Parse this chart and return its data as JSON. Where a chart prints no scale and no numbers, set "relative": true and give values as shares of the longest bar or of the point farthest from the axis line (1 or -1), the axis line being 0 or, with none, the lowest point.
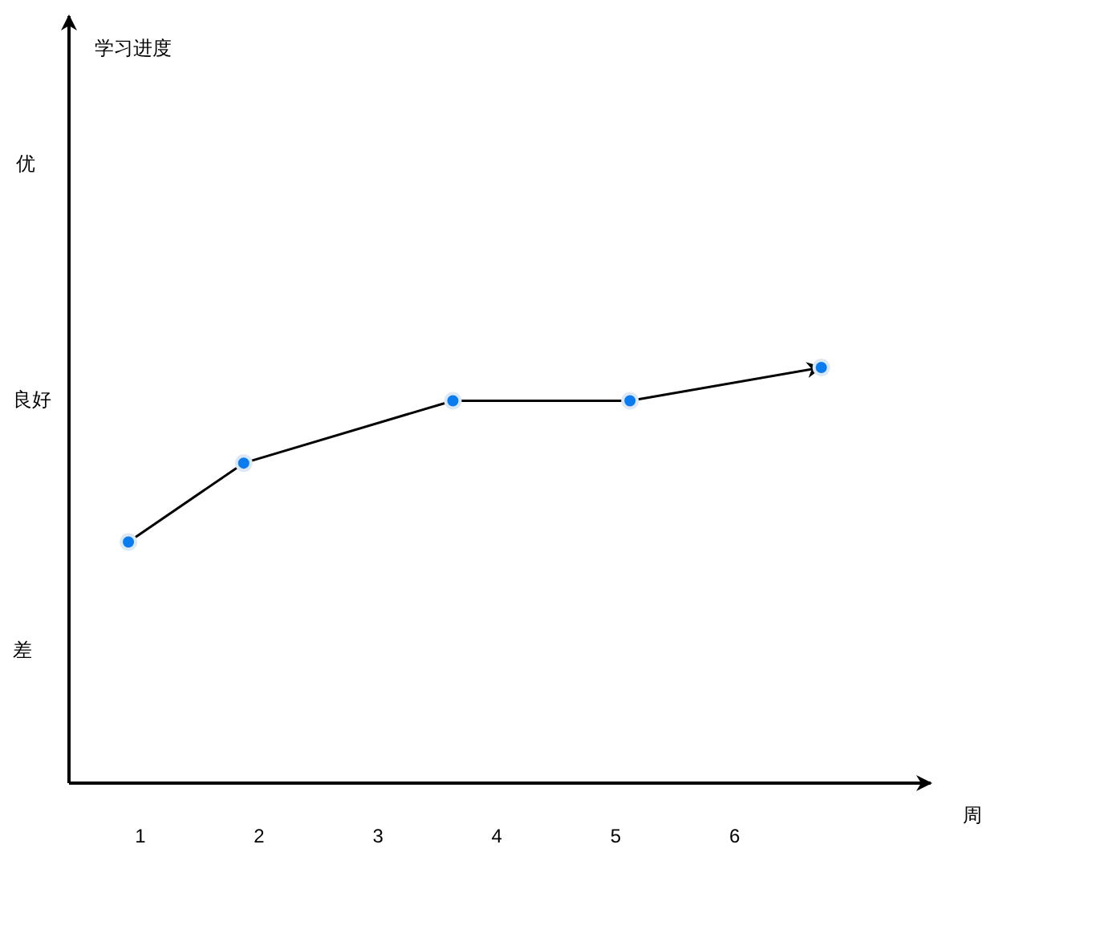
{
  "chart_data": {
    "type": "line",
    "xlabel": "周",
    "relative": true,
    "x": [
      0.9,
      1.87,
      3.63,
      5.12,
      6.73
    ],
    "series": [
      {
        "color": "#0a7cf0",
        "values": [
          0.58,
          0.77,
          0.92,
          0.92,
          1
        ]
      }
    ],
    "xlim": [
      0.4,
      7.65
    ],
    "xticks": [
      1,
      2,
      3,
      4,
      5,
      6
    ],
    "annotations": [
      "学习进度",
      "优",
      "良好",
      "差"
    ],
    "marker": "circle"
  }
}
